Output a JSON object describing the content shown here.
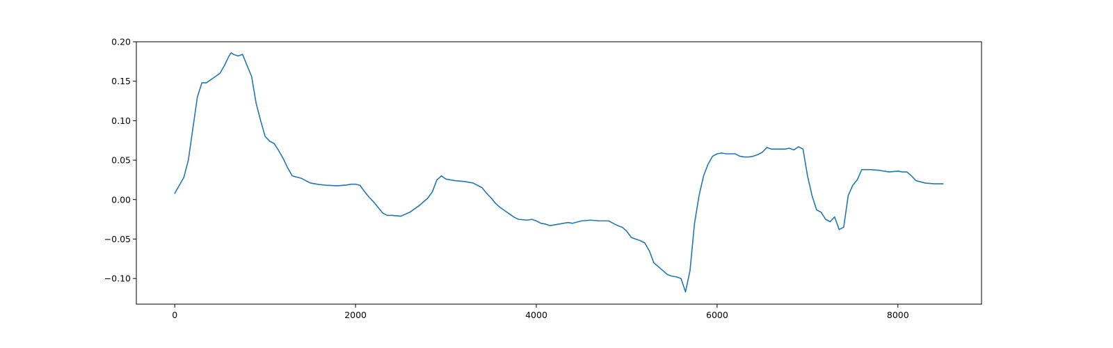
{
  "chart_data": {
    "type": "line",
    "title": "",
    "xlabel": "",
    "ylabel": "",
    "xlim": [
      -425,
      8925
    ],
    "ylim": [
      -0.1325,
      0.2
    ],
    "grid": false,
    "legend": "none",
    "x_ticks": [
      {
        "value": 0,
        "label": "0"
      },
      {
        "value": 2000,
        "label": "2000"
      },
      {
        "value": 4000,
        "label": "4000"
      },
      {
        "value": 6000,
        "label": "6000"
      },
      {
        "value": 8000,
        "label": "8000"
      }
    ],
    "y_ticks": [
      {
        "value": 0.2,
        "label": "0.20"
      },
      {
        "value": 0.15,
        "label": "0.15"
      },
      {
        "value": 0.1,
        "label": "0.10"
      },
      {
        "value": 0.05,
        "label": "0.05"
      },
      {
        "value": 0.0,
        "label": "0.00"
      },
      {
        "value": -0.05,
        "label": "−0.05"
      },
      {
        "value": -0.1,
        "label": "−0.10"
      }
    ],
    "series": [
      {
        "color": "#1f77b4",
        "x": [
          0,
          50,
          100,
          150,
          200,
          250,
          300,
          350,
          400,
          450,
          500,
          550,
          600,
          625,
          650,
          700,
          750,
          800,
          850,
          900,
          950,
          1000,
          1050,
          1100,
          1150,
          1200,
          1250,
          1300,
          1400,
          1500,
          1600,
          1700,
          1800,
          1900,
          1950,
          2000,
          2050,
          2100,
          2150,
          2200,
          2250,
          2300,
          2350,
          2400,
          2500,
          2600,
          2700,
          2800,
          2850,
          2900,
          2950,
          3000,
          3100,
          3200,
          3300,
          3400,
          3450,
          3500,
          3550,
          3600,
          3650,
          3700,
          3750,
          3800,
          3900,
          3950,
          4000,
          4050,
          4100,
          4150,
          4200,
          4300,
          4350,
          4400,
          4500,
          4600,
          4700,
          4800,
          4850,
          4900,
          4950,
          5000,
          5050,
          5100,
          5150,
          5200,
          5250,
          5300,
          5350,
          5400,
          5450,
          5500,
          5550,
          5600,
          5650,
          5700,
          5750,
          5800,
          5850,
          5900,
          5950,
          6000,
          6050,
          6100,
          6150,
          6200,
          6250,
          6300,
          6350,
          6400,
          6450,
          6500,
          6550,
          6600,
          6700,
          6750,
          6800,
          6850,
          6900,
          6950,
          7000,
          7050,
          7100,
          7150,
          7200,
          7250,
          7300,
          7350,
          7400,
          7450,
          7500,
          7550,
          7600,
          7700,
          7800,
          7900,
          8000,
          8050,
          8100,
          8150,
          8200,
          8300,
          8400,
          8500
        ],
        "y": [
          0.008,
          0.018,
          0.028,
          0.05,
          0.09,
          0.13,
          0.148,
          0.148,
          0.152,
          0.156,
          0.16,
          0.17,
          0.182,
          0.186,
          0.184,
          0.182,
          0.184,
          0.17,
          0.156,
          0.122,
          0.1,
          0.08,
          0.074,
          0.071,
          0.062,
          0.052,
          0.04,
          0.03,
          0.027,
          0.021,
          0.019,
          0.018,
          0.0175,
          0.0185,
          0.0195,
          0.0195,
          0.018,
          0.01,
          0.003,
          -0.003,
          -0.01,
          -0.017,
          -0.02,
          -0.02,
          -0.021,
          -0.016,
          -0.008,
          0.002,
          0.01,
          0.025,
          0.03,
          0.026,
          0.024,
          0.023,
          0.021,
          0.015,
          0.008,
          0.002,
          -0.005,
          -0.01,
          -0.014,
          -0.018,
          -0.022,
          -0.025,
          -0.026,
          -0.025,
          -0.027,
          -0.03,
          -0.031,
          -0.033,
          -0.032,
          -0.03,
          -0.029,
          -0.03,
          -0.027,
          -0.026,
          -0.027,
          -0.027,
          -0.03,
          -0.033,
          -0.035,
          -0.04,
          -0.048,
          -0.05,
          -0.052,
          -0.055,
          -0.065,
          -0.08,
          -0.085,
          -0.09,
          -0.095,
          -0.097,
          -0.098,
          -0.1,
          -0.117,
          -0.09,
          -0.03,
          0.005,
          0.03,
          0.045,
          0.055,
          0.058,
          0.059,
          0.058,
          0.058,
          0.058,
          0.055,
          0.054,
          0.054,
          0.055,
          0.057,
          0.06,
          0.066,
          0.064,
          0.064,
          0.064,
          0.065,
          0.063,
          0.067,
          0.064,
          0.03,
          0.005,
          -0.013,
          -0.016,
          -0.025,
          -0.028,
          -0.022,
          -0.038,
          -0.035,
          0.005,
          0.018,
          0.025,
          0.038,
          0.038,
          0.037,
          0.035,
          0.036,
          0.035,
          0.035,
          0.03,
          0.024,
          0.021,
          0.02,
          0.02
        ]
      }
    ]
  }
}
